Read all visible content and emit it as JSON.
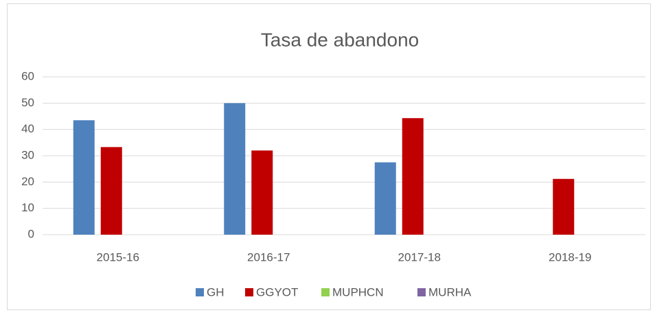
{
  "chart_data": {
    "type": "bar",
    "title": "Tasa de abandono",
    "categories": [
      "2015-16",
      "2016-17",
      "2017-18",
      "2018-19"
    ],
    "series": [
      {
        "name": "GH",
        "color": "#4f81bd",
        "values": [
          43.5,
          50,
          27.5,
          null
        ]
      },
      {
        "name": "GGYOT",
        "color": "#c00000",
        "values": [
          33.3,
          32,
          44.3,
          21.2
        ]
      },
      {
        "name": "MUPHCN",
        "color": "#92d050",
        "values": [
          null,
          null,
          null,
          null
        ]
      },
      {
        "name": "MURHA",
        "color": "#8064a2",
        "values": [
          null,
          null,
          null,
          null
        ]
      }
    ],
    "ylim": [
      0,
      60
    ],
    "yticks": [
      0,
      10,
      20,
      30,
      40,
      50,
      60
    ],
    "grid": true,
    "legend": "bottom"
  }
}
